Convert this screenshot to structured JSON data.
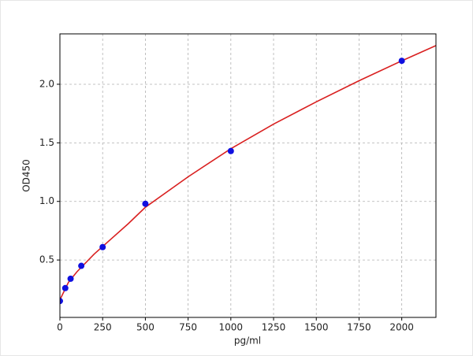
{
  "chart_data": {
    "type": "scatter",
    "xlabel": "pg/ml",
    "ylabel": "OD450",
    "series": [
      {
        "type": "scatter",
        "color": "#1010e0",
        "x": [
          0,
          31.25,
          62.5,
          125,
          250,
          500,
          1000,
          2000
        ],
        "values": [
          0.15,
          0.26,
          0.34,
          0.45,
          0.61,
          0.98,
          1.43,
          2.2
        ]
      },
      {
        "type": "line",
        "color": "#d92020",
        "x": [
          0,
          50,
          100,
          200,
          300,
          400,
          500,
          750,
          1000,
          1250,
          1500,
          1750,
          2000,
          2200
        ],
        "values": [
          0.16,
          0.31,
          0.4,
          0.55,
          0.68,
          0.81,
          0.95,
          1.21,
          1.45,
          1.66,
          1.85,
          2.03,
          2.2,
          2.33
        ]
      }
    ],
    "xlim": [
      0,
      2200
    ],
    "xticks": [
      0,
      250,
      500,
      750,
      1000,
      1250,
      1500,
      1750,
      2000
    ],
    "ylim": [
      0.01,
      2.43
    ],
    "yticks": [
      0.5,
      {
        "value": 1,
        "label": "1.0"
      },
      1.5,
      {
        "value": 2,
        "label": "2.0"
      }
    ],
    "grid": true
  }
}
